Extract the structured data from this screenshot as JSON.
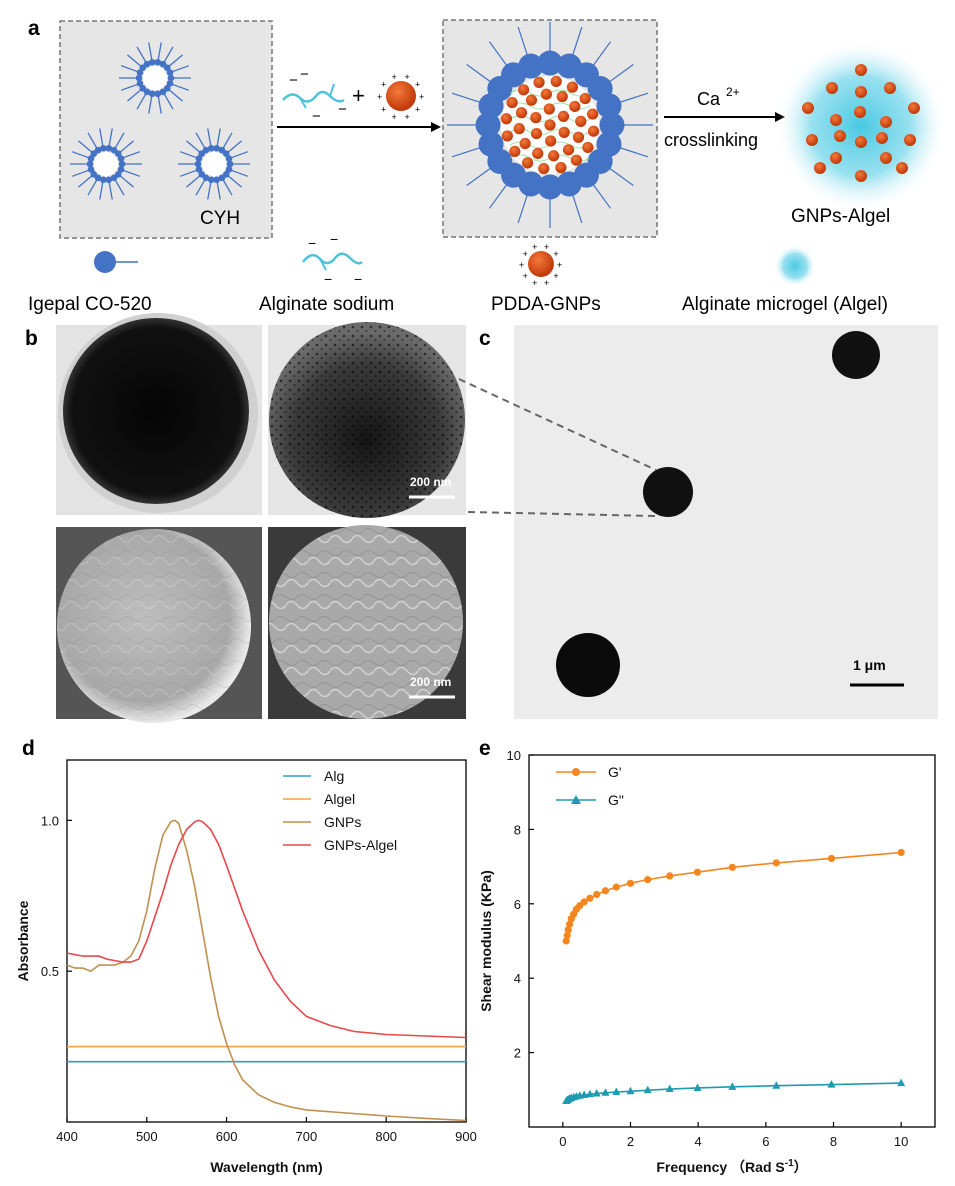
{
  "panels": {
    "a": "a",
    "b": "b",
    "c": "c",
    "d": "d",
    "e": "e"
  },
  "schematic": {
    "cyh_label": "CYH",
    "arrow_label_ca": "Ca",
    "arrow_label_ca_sup": "2+",
    "arrow_label_crosslink": "crosslinking",
    "product_label": "GNPs-Algel",
    "plus_sign": "+",
    "legend": [
      "Igepal CO-520",
      "Alginate sodium",
      "PDDA-GNPs",
      "Alginate microgel (Algel)"
    ],
    "colors": {
      "surfactant": "#4472C4",
      "alginate": "#4FC3D9",
      "gnp": "#D64B12",
      "gel": "#5FD3E8",
      "box": "#e6e6e6"
    }
  },
  "micrographs": {
    "scale_200": "200 nm",
    "scale_1um": "1 μm"
  },
  "chart_data": [
    {
      "type": "line",
      "panel": "d",
      "xlabel": "Wavelength (nm)",
      "ylabel": "Absorbance",
      "xlim": [
        400,
        900
      ],
      "ylim": [
        0,
        1.2
      ],
      "xticks": [
        400,
        500,
        600,
        700,
        800,
        900
      ],
      "yticks": [
        0.5,
        1.0
      ],
      "ytick_labels": [
        "0.5",
        "1.0"
      ],
      "legend_position": "top-right",
      "series": [
        {
          "name": "Alg",
          "color": "#2E9FC4",
          "x": [
            400,
            900
          ],
          "y": [
            0.2,
            0.2
          ]
        },
        {
          "name": "Algel",
          "color": "#F5A04A",
          "x": [
            400,
            900
          ],
          "y": [
            0.25,
            0.25
          ]
        },
        {
          "name": "GNPs",
          "color": "#C09050",
          "x": [
            400,
            410,
            420,
            430,
            440,
            450,
            460,
            470,
            480,
            490,
            500,
            510,
            520,
            530,
            535,
            540,
            550,
            560,
            570,
            580,
            590,
            600,
            610,
            620,
            640,
            660,
            680,
            700,
            750,
            800,
            850,
            900
          ],
          "y": [
            0.52,
            0.51,
            0.51,
            0.5,
            0.52,
            0.52,
            0.52,
            0.53,
            0.55,
            0.6,
            0.7,
            0.84,
            0.95,
            0.995,
            1.0,
            0.99,
            0.9,
            0.78,
            0.63,
            0.48,
            0.35,
            0.26,
            0.19,
            0.14,
            0.09,
            0.065,
            0.05,
            0.04,
            0.03,
            0.02,
            0.012,
            0.005
          ]
        },
        {
          "name": "GNPs-Algel",
          "color": "#E8474C",
          "x": [
            400,
            420,
            440,
            450,
            460,
            470,
            480,
            490,
            500,
            510,
            520,
            530,
            540,
            550,
            560,
            565,
            570,
            580,
            590,
            600,
            620,
            640,
            660,
            680,
            700,
            730,
            760,
            800,
            850,
            900
          ],
          "y": [
            0.56,
            0.55,
            0.55,
            0.54,
            0.535,
            0.53,
            0.53,
            0.54,
            0.6,
            0.68,
            0.76,
            0.85,
            0.92,
            0.97,
            0.995,
            1.0,
            0.995,
            0.97,
            0.92,
            0.85,
            0.7,
            0.57,
            0.47,
            0.4,
            0.35,
            0.32,
            0.3,
            0.29,
            0.285,
            0.28
          ]
        }
      ]
    },
    {
      "type": "line",
      "panel": "e",
      "xlabel": "Frequency （Rad S",
      "xlabel_sup": "-1",
      "xlabel_close": "）",
      "ylabel": "Shear modulus (KPa)",
      "xlim": [
        -1,
        11
      ],
      "ylim": [
        0,
        10
      ],
      "xticks": [
        0,
        2,
        4,
        6,
        8,
        10
      ],
      "yticks": [
        2,
        4,
        6,
        8,
        10
      ],
      "legend_position": "top-left",
      "series": [
        {
          "name": "G'",
          "color": "#F5861F",
          "marker": "circle",
          "x": [
            0.1,
            0.13,
            0.16,
            0.2,
            0.25,
            0.32,
            0.4,
            0.5,
            0.63,
            0.8,
            1.0,
            1.26,
            1.58,
            2.0,
            2.51,
            3.16,
            3.98,
            5.01,
            6.31,
            7.94,
            10.0
          ],
          "y": [
            5.0,
            5.15,
            5.3,
            5.45,
            5.6,
            5.72,
            5.85,
            5.95,
            6.05,
            6.15,
            6.25,
            6.35,
            6.45,
            6.55,
            6.65,
            6.75,
            6.85,
            6.98,
            7.1,
            7.22,
            7.38
          ]
        },
        {
          "name": "G\"",
          "color": "#1E9BB0",
          "marker": "triangle",
          "x": [
            0.1,
            0.13,
            0.16,
            0.2,
            0.25,
            0.32,
            0.4,
            0.5,
            0.63,
            0.8,
            1.0,
            1.26,
            1.58,
            2.0,
            2.51,
            3.16,
            3.98,
            5.01,
            6.31,
            7.94,
            10.0
          ],
          "y": [
            0.7,
            0.72,
            0.74,
            0.76,
            0.78,
            0.8,
            0.82,
            0.84,
            0.86,
            0.88,
            0.9,
            0.92,
            0.94,
            0.96,
            0.99,
            1.02,
            1.05,
            1.08,
            1.11,
            1.14,
            1.18
          ]
        }
      ]
    }
  ]
}
